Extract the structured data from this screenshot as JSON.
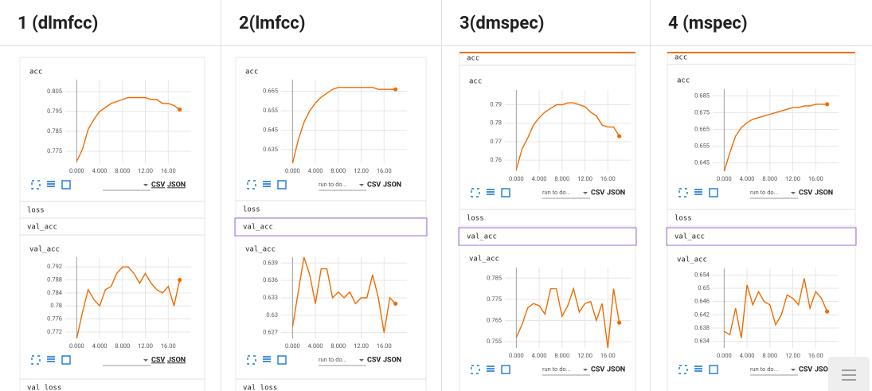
{
  "columns": [
    {
      "title": "1 (dlmfcc)",
      "labels": [
        "loss",
        "val_acc",
        "val_loss"
      ],
      "controls": {
        "csv": "CSV",
        "json": "JSON"
      },
      "charts": [
        {
          "type": "line",
          "title": "acc",
          "color": "#ef6c00",
          "grid": true,
          "x": [
            0,
            1,
            2,
            3,
            4,
            5,
            6,
            7,
            8,
            9,
            10,
            11,
            12,
            13,
            14,
            15,
            16,
            17,
            18
          ],
          "values": [
            0.77,
            0.776,
            0.786,
            0.791,
            0.795,
            0.797,
            0.799,
            0.8,
            0.801,
            0.802,
            0.802,
            0.802,
            0.802,
            0.801,
            0.801,
            0.799,
            0.799,
            0.798,
            0.796
          ],
          "xlim": [
            -2,
            20
          ],
          "ylim": [
            0.769,
            0.811
          ],
          "xticks": [
            {
              "value": 0,
              "label": "0.000"
            },
            {
              "value": 4,
              "label": "4.000"
            },
            {
              "value": 8,
              "label": "8.000"
            },
            {
              "value": 12,
              "label": "12.00"
            },
            {
              "value": 16,
              "label": "16.00"
            }
          ],
          "yticks": [
            0.775,
            0.785,
            0.795,
            0.805
          ]
        },
        {
          "type": "line",
          "title": "val_acc",
          "color": "#ef6c00",
          "grid": true,
          "x": [
            0,
            1,
            2,
            3,
            4,
            5,
            6,
            7,
            8,
            9,
            10,
            11,
            12,
            13,
            14,
            15,
            16,
            17,
            18
          ],
          "values": [
            0.77,
            0.778,
            0.785,
            0.782,
            0.78,
            0.785,
            0.786,
            0.79,
            0.792,
            0.792,
            0.79,
            0.787,
            0.79,
            0.787,
            0.785,
            0.784,
            0.786,
            0.78,
            0.788
          ],
          "xlim": [
            -2,
            20
          ],
          "ylim": [
            0.77,
            0.795
          ],
          "xticks": [
            {
              "value": 0,
              "label": "0.000"
            },
            {
              "value": 4,
              "label": "4.000"
            },
            {
              "value": 8,
              "label": "8.000"
            },
            {
              "value": 12,
              "label": "12.00"
            },
            {
              "value": 16,
              "label": "16.00"
            }
          ],
          "yticks": [
            0.772,
            0.776,
            0.78,
            0.784,
            0.788,
            0.792
          ]
        }
      ]
    },
    {
      "title": "2(lmfcc)",
      "labels": [
        "loss",
        "val_acc",
        "val_loss"
      ],
      "controls": {
        "dropdown": "run to do...",
        "csv": "CSV",
        "json": "JSON"
      },
      "charts": [
        {
          "type": "line",
          "title": "acc",
          "color": "#ef6c00",
          "grid": true,
          "x": [
            0,
            1,
            2,
            3,
            4,
            5,
            6,
            7,
            8,
            9,
            10,
            11,
            12,
            13,
            14,
            15,
            16,
            17,
            18
          ],
          "values": [
            0.628,
            0.64,
            0.649,
            0.655,
            0.659,
            0.662,
            0.664,
            0.666,
            0.667,
            0.667,
            0.667,
            0.667,
            0.667,
            0.667,
            0.667,
            0.666,
            0.666,
            0.666,
            0.666
          ],
          "xlim": [
            -2,
            20
          ],
          "ylim": [
            0.628,
            0.671
          ],
          "xticks": [
            {
              "value": 0,
              "label": "0.000"
            },
            {
              "value": 4,
              "label": "4.000"
            },
            {
              "value": 8,
              "label": "8.000"
            },
            {
              "value": 12,
              "label": "12.00"
            },
            {
              "value": 16,
              "label": "16.00"
            }
          ],
          "yticks": [
            0.635,
            0.645,
            0.655,
            0.665
          ]
        },
        {
          "type": "line",
          "title": "val_acc",
          "color": "#ef6c00",
          "grid": true,
          "x": [
            0,
            1,
            2,
            3,
            4,
            5,
            6,
            7,
            8,
            9,
            10,
            11,
            12,
            13,
            14,
            15,
            16,
            17,
            18
          ],
          "values": [
            0.628,
            0.634,
            0.64,
            0.637,
            0.632,
            0.638,
            0.638,
            0.633,
            0.634,
            0.633,
            0.634,
            0.632,
            0.633,
            0.633,
            0.637,
            0.633,
            0.627,
            0.633,
            0.632
          ],
          "xlim": [
            -2,
            20
          ],
          "ylim": [
            0.626,
            0.64
          ],
          "xticks": [
            {
              "value": 0,
              "label": "0.000"
            },
            {
              "value": 4,
              "label": "4.000"
            },
            {
              "value": 8,
              "label": "8.000"
            },
            {
              "value": 12,
              "label": "12.00"
            },
            {
              "value": 16,
              "label": "16.00"
            }
          ],
          "yticks": [
            0.627,
            0.63,
            0.633,
            0.636,
            0.639
          ]
        }
      ]
    },
    {
      "title": "3(dmspec)",
      "top_label": "acc",
      "labels": [
        "loss",
        "val_acc"
      ],
      "controls": {
        "dropdown": "run to do...",
        "csv": "CSV",
        "json": "JSON"
      },
      "charts": [
        {
          "type": "line",
          "title": "acc",
          "color": "#ef6c00",
          "grid": true,
          "x": [
            0,
            1,
            2,
            3,
            4,
            5,
            6,
            7,
            8,
            9,
            10,
            11,
            12,
            13,
            14,
            15,
            16,
            17,
            18
          ],
          "values": [
            0.755,
            0.766,
            0.772,
            0.779,
            0.783,
            0.786,
            0.788,
            0.79,
            0.79,
            0.791,
            0.791,
            0.79,
            0.789,
            0.786,
            0.784,
            0.779,
            0.778,
            0.778,
            0.773
          ],
          "xlim": [
            -2,
            20
          ],
          "ylim": [
            0.754,
            0.798
          ],
          "xticks": [
            {
              "value": 0,
              "label": "0.000"
            },
            {
              "value": 4,
              "label": "4.000"
            },
            {
              "value": 8,
              "label": "8.000"
            },
            {
              "value": 12,
              "label": "12.00"
            },
            {
              "value": 16,
              "label": "16.00"
            }
          ],
          "yticks": [
            0.76,
            0.77,
            0.78,
            0.79
          ]
        },
        {
          "type": "line",
          "title": "val_acc",
          "color": "#ef6c00",
          "grid": true,
          "x": [
            0,
            1,
            2,
            3,
            4,
            5,
            6,
            7,
            8,
            9,
            10,
            11,
            12,
            13,
            14,
            15,
            16,
            17,
            18
          ],
          "values": [
            0.757,
            0.763,
            0.771,
            0.773,
            0.772,
            0.768,
            0.78,
            0.78,
            0.767,
            0.772,
            0.78,
            0.769,
            0.773,
            0.774,
            0.765,
            0.773,
            0.752,
            0.78,
            0.764
          ],
          "xlim": [
            -2,
            20
          ],
          "ylim": [
            0.752,
            0.79
          ],
          "xticks": [
            {
              "value": 0,
              "label": "0.000"
            },
            {
              "value": 4,
              "label": "4.000"
            },
            {
              "value": 8,
              "label": "8.000"
            },
            {
              "value": 12,
              "label": "12.00"
            },
            {
              "value": 16,
              "label": "16.00"
            }
          ],
          "yticks": [
            0.755,
            0.765,
            0.775,
            0.785
          ]
        }
      ]
    },
    {
      "title": "4 (mspec)",
      "top_label": "acc",
      "labels": [
        "loss",
        "val_acc"
      ],
      "controls": {
        "dropdown": "run to do...",
        "csv": "CSV",
        "json": "JSON"
      },
      "charts": [
        {
          "type": "line",
          "title": "acc",
          "color": "#ef6c00",
          "grid": true,
          "x": [
            0,
            1,
            2,
            3,
            4,
            5,
            6,
            7,
            8,
            9,
            10,
            11,
            12,
            13,
            14,
            15,
            16,
            17,
            18
          ],
          "values": [
            0.64,
            0.651,
            0.661,
            0.666,
            0.669,
            0.671,
            0.672,
            0.673,
            0.674,
            0.675,
            0.676,
            0.677,
            0.678,
            0.678,
            0.679,
            0.679,
            0.68,
            0.68,
            0.68
          ],
          "xlim": [
            -2,
            20
          ],
          "ylim": [
            0.64,
            0.689
          ],
          "xticks": [
            {
              "value": 0,
              "label": "0.000"
            },
            {
              "value": 4,
              "label": "4.000"
            },
            {
              "value": 8,
              "label": "8.000"
            },
            {
              "value": 12,
              "label": "12.00"
            },
            {
              "value": 16,
              "label": "16.00"
            }
          ],
          "yticks": [
            0.645,
            0.655,
            0.665,
            0.675,
            0.685
          ]
        },
        {
          "type": "line",
          "title": "val_acc",
          "color": "#ef6c00",
          "grid": true,
          "x": [
            0,
            1,
            2,
            3,
            4,
            5,
            6,
            7,
            8,
            9,
            10,
            11,
            12,
            13,
            14,
            15,
            16,
            17,
            18
          ],
          "values": [
            0.637,
            0.636,
            0.644,
            0.635,
            0.651,
            0.645,
            0.649,
            0.646,
            0.645,
            0.639,
            0.642,
            0.648,
            0.647,
            0.645,
            0.653,
            0.644,
            0.649,
            0.647,
            0.643
          ],
          "xlim": [
            -2,
            20
          ],
          "ylim": [
            0.632,
            0.656
          ],
          "xticks": [
            {
              "value": 0,
              "label": "0.000"
            },
            {
              "value": 4,
              "label": "4.000"
            },
            {
              "value": 8,
              "label": "8.000"
            },
            {
              "value": 12,
              "label": "12.00"
            },
            {
              "value": 16,
              "label": "16.00"
            }
          ],
          "yticks": [
            0.634,
            0.638,
            0.642,
            0.646,
            0.65,
            0.654
          ]
        }
      ]
    }
  ]
}
